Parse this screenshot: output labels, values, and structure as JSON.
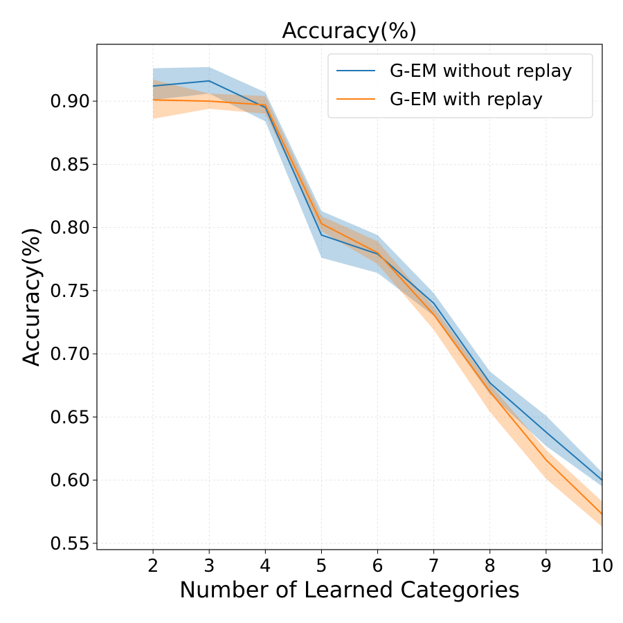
{
  "chart_data": {
    "type": "line",
    "title": "Accuracy(%)",
    "xlabel": "Number of Learned Categories",
    "ylabel": "Accuracy(%)",
    "xlim": [
      1,
      10
    ],
    "ylim": [
      0.545,
      0.945
    ],
    "x_ticks": [
      2,
      3,
      4,
      5,
      6,
      7,
      8,
      9,
      10
    ],
    "y_ticks": [
      0.55,
      0.6,
      0.65,
      0.7,
      0.75,
      0.8,
      0.85,
      0.9
    ],
    "x_tick_labels": [
      "2",
      "3",
      "4",
      "5",
      "6",
      "7",
      "8",
      "9",
      "10"
    ],
    "y_tick_labels": [
      "0.55",
      "0.60",
      "0.65",
      "0.70",
      "0.75",
      "0.80",
      "0.85",
      "0.90"
    ],
    "grid": true,
    "legend_position": "top-right",
    "x": [
      2,
      3,
      4,
      5,
      6,
      7,
      8,
      9,
      10
    ],
    "series": [
      {
        "name": "G-EM without replay",
        "color": "#1f77b4",
        "band_color": "#1f77b4",
        "values": [
          0.912,
          0.916,
          0.895,
          0.794,
          0.779,
          0.74,
          0.677,
          0.638,
          0.6
        ],
        "upper": [
          0.926,
          0.927,
          0.907,
          0.813,
          0.794,
          0.748,
          0.686,
          0.651,
          0.606
        ],
        "lower": [
          0.901,
          0.906,
          0.884,
          0.776,
          0.764,
          0.73,
          0.668,
          0.627,
          0.595
        ]
      },
      {
        "name": "G-EM with replay",
        "color": "#ff7f0e",
        "band_color": "#ff7f0e",
        "values": [
          0.901,
          0.9,
          0.897,
          0.803,
          0.78,
          0.731,
          0.67,
          0.616,
          0.573
        ],
        "upper": [
          0.917,
          0.906,
          0.904,
          0.809,
          0.789,
          0.737,
          0.676,
          0.624,
          0.583
        ],
        "lower": [
          0.886,
          0.894,
          0.89,
          0.797,
          0.771,
          0.719,
          0.654,
          0.601,
          0.563
        ]
      }
    ]
  }
}
